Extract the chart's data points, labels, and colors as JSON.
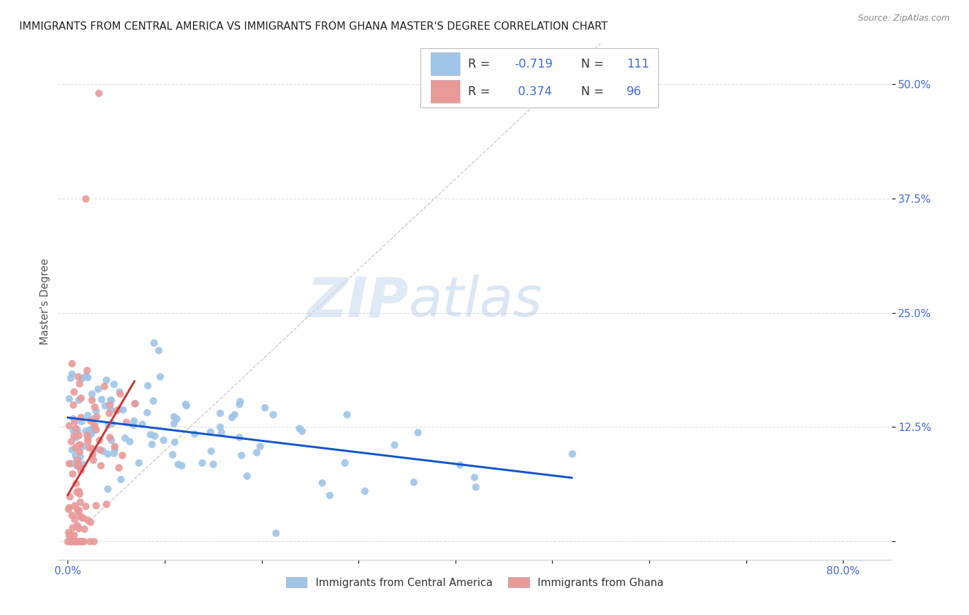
{
  "title": "IMMIGRANTS FROM CENTRAL AMERICA VS IMMIGRANTS FROM GHANA MASTER'S DEGREE CORRELATION CHART",
  "source": "Source: ZipAtlas.com",
  "ylabel": "Master's Degree",
  "x_ticks": [
    0.0,
    0.1,
    0.2,
    0.3,
    0.4,
    0.5,
    0.6,
    0.7,
    0.8
  ],
  "x_tick_labels": [
    "0.0%",
    "",
    "",
    "",
    "",
    "",
    "",
    "",
    "80.0%"
  ],
  "y_ticks": [
    0.0,
    0.125,
    0.25,
    0.375,
    0.5
  ],
  "y_tick_labels": [
    "",
    "12.5%",
    "25.0%",
    "37.5%",
    "50.0%"
  ],
  "xlim": [
    -0.01,
    0.85
  ],
  "ylim": [
    -0.02,
    0.545
  ],
  "blue_R": -0.719,
  "blue_N": 111,
  "pink_R": 0.374,
  "pink_N": 96,
  "blue_color": "#9fc5e8",
  "pink_color": "#ea9999",
  "blue_line_color": "#1155cc",
  "pink_line_color": "#cc3333",
  "diagonal_color": "#cccccc",
  "watermark_zip": "ZIP",
  "watermark_atlas": "atlas",
  "legend_label_blue": "Immigrants from Central America",
  "legend_label_pink": "Immigrants from Ghana",
  "background_color": "#ffffff",
  "grid_color": "#dddddd",
  "title_color": "#222222",
  "tick_label_color": "#4169e1",
  "source_color": "#888888"
}
